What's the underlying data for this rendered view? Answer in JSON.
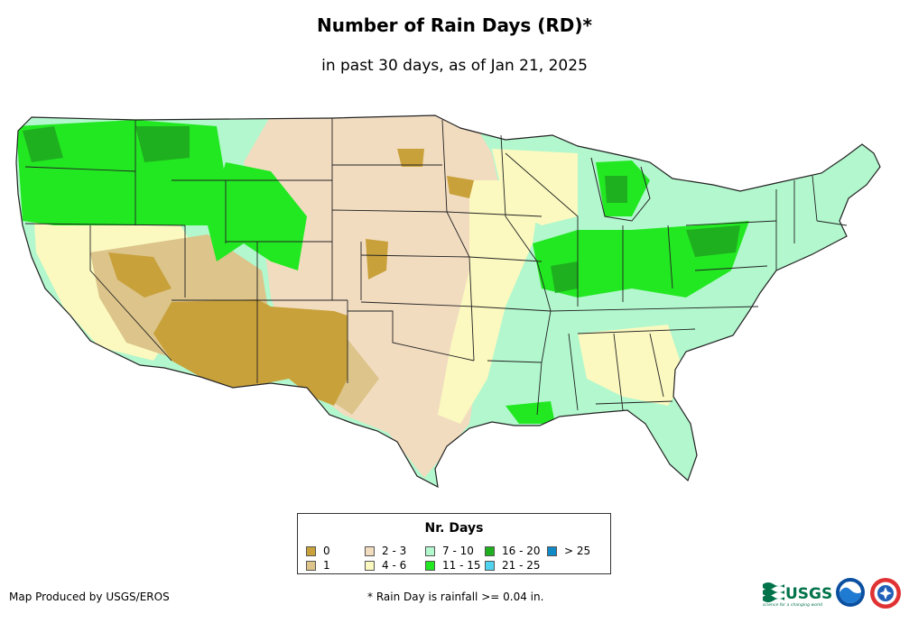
{
  "title": "Number of Rain Days (RD)*",
  "subtitle": "in past 30 days, as of Jan 21, 2025",
  "legend": {
    "title": "Nr. Days",
    "items": [
      {
        "label": "0",
        "color": "#c9a13b"
      },
      {
        "label": "1",
        "color": "#dcc48a"
      },
      {
        "label": "2 - 3",
        "color": "#f1dcc0"
      },
      {
        "label": "4 - 6",
        "color": "#fbf9c0"
      },
      {
        "label": "7 - 10",
        "color": "#b2f7cd"
      },
      {
        "label": "11 - 15",
        "color": "#22e822"
      },
      {
        "label": "16 - 20",
        "color": "#1eb01e"
      },
      {
        "label": "21 - 25",
        "color": "#4fd3ef"
      },
      {
        "label": "> 25",
        "color": "#1189c4"
      }
    ]
  },
  "credit": "Map Produced by USGS/EROS",
  "footnote": "* Rain Day is rainfall >= 0.04 in.",
  "logos": {
    "usgs": "USGS",
    "usgs_tagline": "science for a changing world",
    "noaa": "NOAA"
  }
}
